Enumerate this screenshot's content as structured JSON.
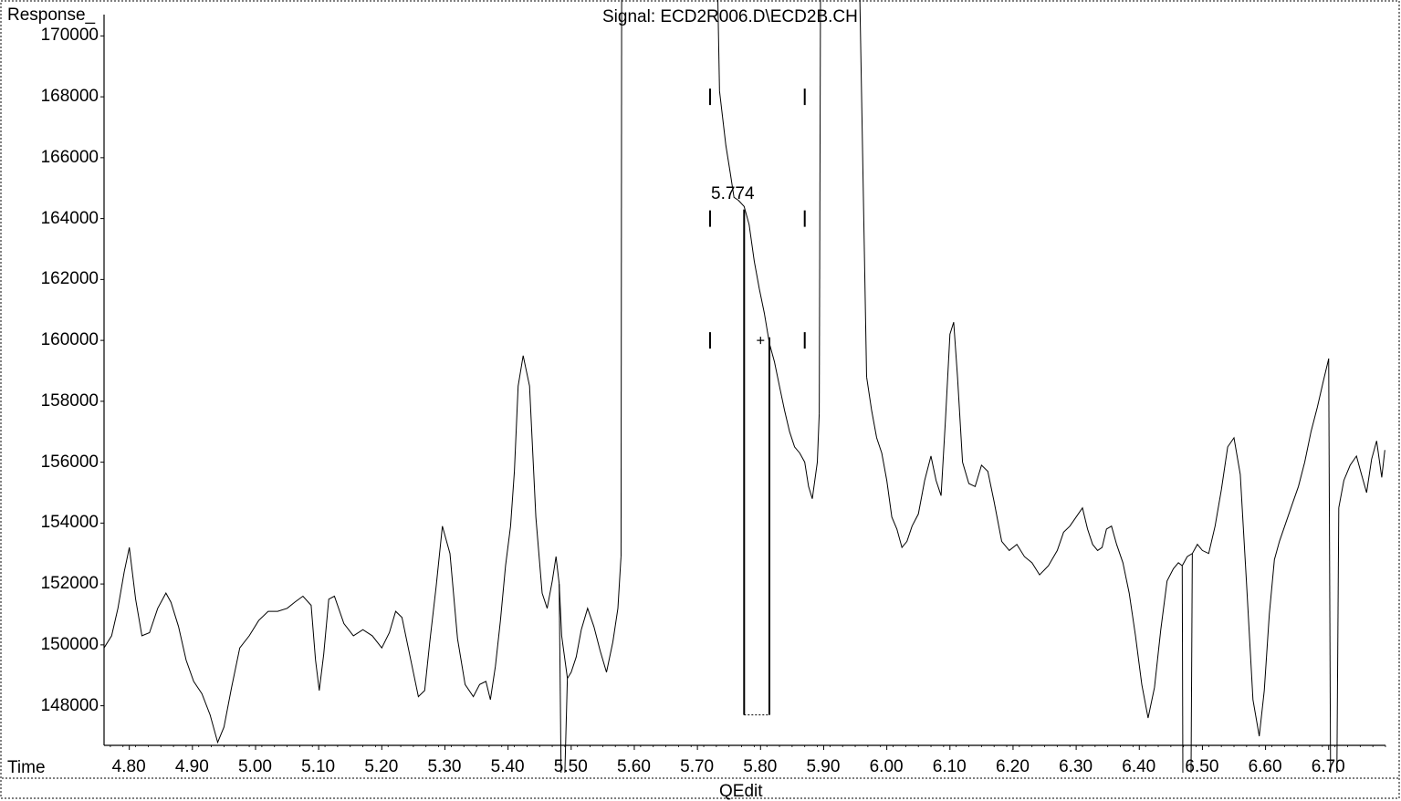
{
  "window": {
    "footer_label": "QEdit"
  },
  "chart_data": {
    "type": "line",
    "title": "Signal: ECD2R006.D\\ECD2B.CH",
    "ylabel": "Response_",
    "xlabel": "Time",
    "xlim": [
      4.76,
      6.79
    ],
    "ylim": [
      146700,
      170700
    ],
    "x_ticks": [
      4.8,
      4.9,
      5.0,
      5.1,
      5.2,
      5.3,
      5.4,
      5.5,
      5.6,
      5.7,
      5.8,
      5.9,
      6.0,
      6.1,
      6.2,
      6.3,
      6.4,
      6.5,
      6.6,
      6.7
    ],
    "x_tick_labels": [
      "4.80",
      "4.90",
      "5.00",
      "5.10",
      "5.20",
      "5.30",
      "5.40",
      "5.50",
      "5.60",
      "5.70",
      "5.80",
      "5.90",
      "6.00",
      "6.10",
      "6.20",
      "6.30",
      "6.40",
      "6.50",
      "6.60",
      "6.70"
    ],
    "y_ticks": [
      148000,
      150000,
      152000,
      154000,
      156000,
      158000,
      160000,
      162000,
      164000,
      166000,
      168000,
      170000
    ],
    "y_tick_labels": [
      "148000",
      "150000",
      "152000",
      "154000",
      "156000",
      "158000",
      "160000",
      "162000",
      "164000",
      "166000",
      "168000",
      "170000"
    ],
    "series": [
      {
        "x": [
          4.76,
          4.772,
          4.782,
          4.792,
          4.8,
          4.81,
          4.82,
          4.832,
          4.845,
          4.858,
          4.866,
          4.878,
          4.89,
          4.902,
          4.915,
          4.928,
          4.94,
          4.95,
          4.962,
          4.975,
          4.99,
          5.005,
          5.02,
          5.035,
          5.05,
          5.062,
          5.075,
          5.088,
          5.095,
          5.101,
          5.108,
          5.116,
          5.125,
          5.14,
          5.155,
          5.17,
          5.185,
          5.2,
          5.212,
          5.222,
          5.232,
          5.245,
          5.258,
          5.268,
          5.276,
          5.286,
          5.296,
          5.308,
          5.32,
          5.332,
          5.345,
          5.355,
          5.365,
          5.372,
          5.38,
          5.388,
          5.396,
          5.404,
          5.41,
          5.416,
          5.424,
          5.434,
          5.444,
          5.454,
          5.462,
          5.47,
          5.476,
          5.481,
          5.485,
          5.494,
          5.5,
          5.508,
          5.516,
          5.526,
          5.536,
          5.546,
          5.556,
          5.566,
          5.574,
          5.579
        ],
        "y": [
          149900,
          150300,
          151200,
          152400,
          153200,
          151500,
          150300,
          150400,
          151200,
          151700,
          151400,
          150600,
          149500,
          148800,
          148400,
          147700,
          146800,
          147300,
          148600,
          149900,
          150300,
          150800,
          151100,
          151100,
          151200,
          151400,
          151600,
          151300,
          149500,
          148500,
          149700,
          151500,
          151600,
          150700,
          150300,
          150500,
          150300,
          149900,
          150400,
          151100,
          150900,
          149600,
          148300,
          148500,
          150100,
          151900,
          153900,
          153000,
          150200,
          148700,
          148300,
          148700,
          148800,
          148200,
          149300,
          150800,
          152600,
          153900,
          155700,
          158500,
          159500,
          158500,
          154200,
          151700,
          151200,
          152100,
          152900,
          152000,
          150300,
          148900,
          149100,
          149600,
          150500,
          151200,
          150600,
          149800,
          149100,
          150100,
          151200,
          152900
        ]
      },
      {
        "x": [
          5.735,
          5.745,
          5.752,
          5.758,
          5.765,
          5.774,
          5.782,
          5.79,
          5.798,
          5.806,
          5.814,
          5.822,
          5.83,
          5.838,
          5.846,
          5.854,
          5.862,
          5.87,
          5.876,
          5.882,
          5.89,
          5.893
        ],
        "y": [
          168200,
          166400,
          165500,
          164700,
          164600,
          164400,
          163800,
          162600,
          161700,
          160900,
          159900,
          159300,
          158500,
          157700,
          157000,
          156500,
          156300,
          156000,
          155200,
          154800,
          156000,
          157600
        ]
      },
      {
        "x": [
          5.968,
          5.976,
          5.984,
          5.992,
          6.0,
          6.008,
          6.016,
          6.024,
          6.032,
          6.04,
          6.05,
          6.06,
          6.07,
          6.078,
          6.086,
          6.093,
          6.1,
          6.106,
          6.112,
          6.12,
          6.13,
          6.14,
          6.15,
          6.16,
          6.17,
          6.182,
          6.194,
          6.206,
          6.218,
          6.23,
          6.242,
          6.256,
          6.27,
          6.28,
          6.29,
          6.3,
          6.31,
          6.318,
          6.326,
          6.334,
          6.341,
          6.348,
          6.356,
          6.364,
          6.374,
          6.384,
          6.394,
          6.404,
          6.414,
          6.424,
          6.434,
          6.444,
          6.454,
          6.462,
          6.468
        ],
        "y": [
          158800,
          157700,
          156800,
          156300,
          155400,
          154200,
          153800,
          153200,
          153400,
          153900,
          154300,
          155400,
          156200,
          155400,
          154900,
          157400,
          160200,
          160600,
          158800,
          156000,
          155300,
          155200,
          155900,
          155700,
          154700,
          153400,
          153100,
          153300,
          152900,
          152700,
          152300,
          152600,
          153100,
          153700,
          153900,
          154200,
          154500,
          153800,
          153300,
          153100,
          153200,
          153800,
          153900,
          153300,
          152700,
          151700,
          150300,
          148700,
          147600,
          148600,
          150500,
          152100,
          152500,
          152700,
          152600
        ]
      },
      {
        "x": [
          6.468,
          6.476,
          6.484,
          6.492,
          6.5,
          6.51,
          6.52,
          6.53,
          6.54,
          6.55,
          6.56,
          6.57,
          6.58,
          6.59,
          6.598,
          6.606,
          6.614,
          6.622,
          6.632,
          6.642,
          6.652,
          6.662,
          6.672,
          6.682,
          6.692,
          6.7
        ],
        "y": [
          152600,
          152900,
          153000,
          153300,
          153100,
          153000,
          153900,
          155100,
          156500,
          156800,
          155600,
          152000,
          148200,
          147000,
          148500,
          151000,
          152800,
          153400,
          154000,
          154600,
          155200,
          156000,
          157000,
          157800,
          158700,
          159400
        ]
      }
    ],
    "peak_label": "5.774",
    "peak_rt": 5.774,
    "baseline_end_rt": 5.814,
    "annotations": []
  }
}
